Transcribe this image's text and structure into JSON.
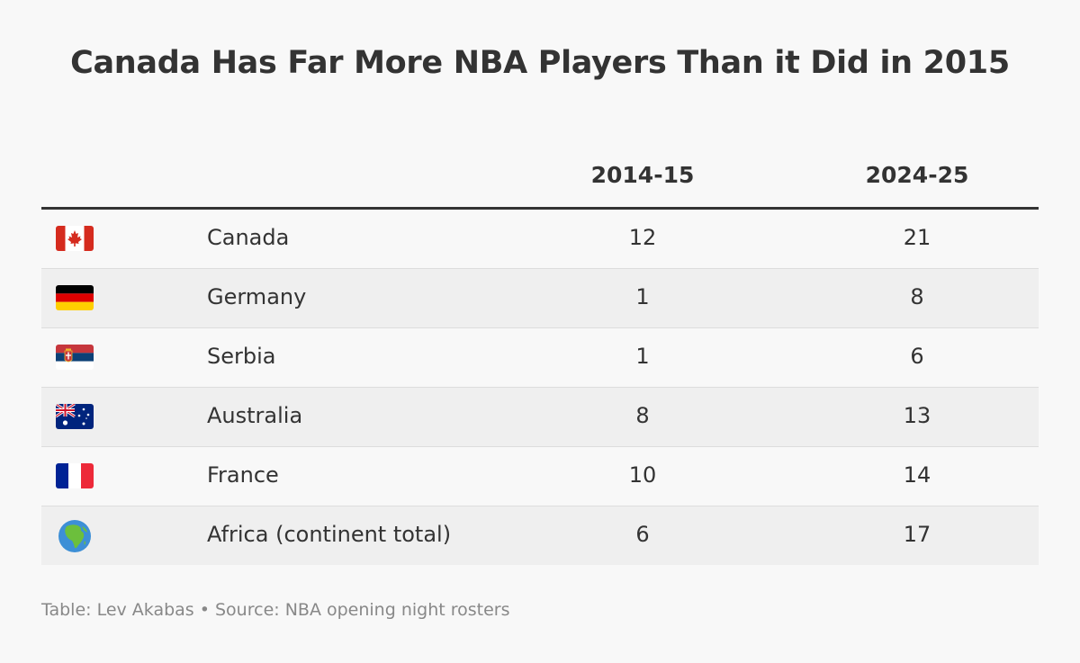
{
  "chart_data": {
    "type": "table",
    "title": "Canada Has Far More NBA Players Than it Did in 2015",
    "columns": [
      "2014-15",
      "2024-25"
    ],
    "rows": [
      {
        "label": "Canada",
        "flag": "canada-flag-icon",
        "values": [
          "12",
          "21"
        ]
      },
      {
        "label": "Germany",
        "flag": "germany-flag-icon",
        "values": [
          "1",
          "8"
        ]
      },
      {
        "label": "Serbia",
        "flag": "serbia-flag-icon",
        "values": [
          "1",
          "6"
        ]
      },
      {
        "label": "Australia",
        "flag": "australia-flag-icon",
        "values": [
          "8",
          "13"
        ]
      },
      {
        "label": "France",
        "flag": "france-flag-icon",
        "values": [
          "10",
          "14"
        ]
      },
      {
        "label": "Africa (continent total)",
        "flag": "globe-africa-icon",
        "values": [
          "6",
          "17"
        ]
      }
    ],
    "footer": "Table: Lev Akabas • Source: NBA opening night rosters"
  }
}
